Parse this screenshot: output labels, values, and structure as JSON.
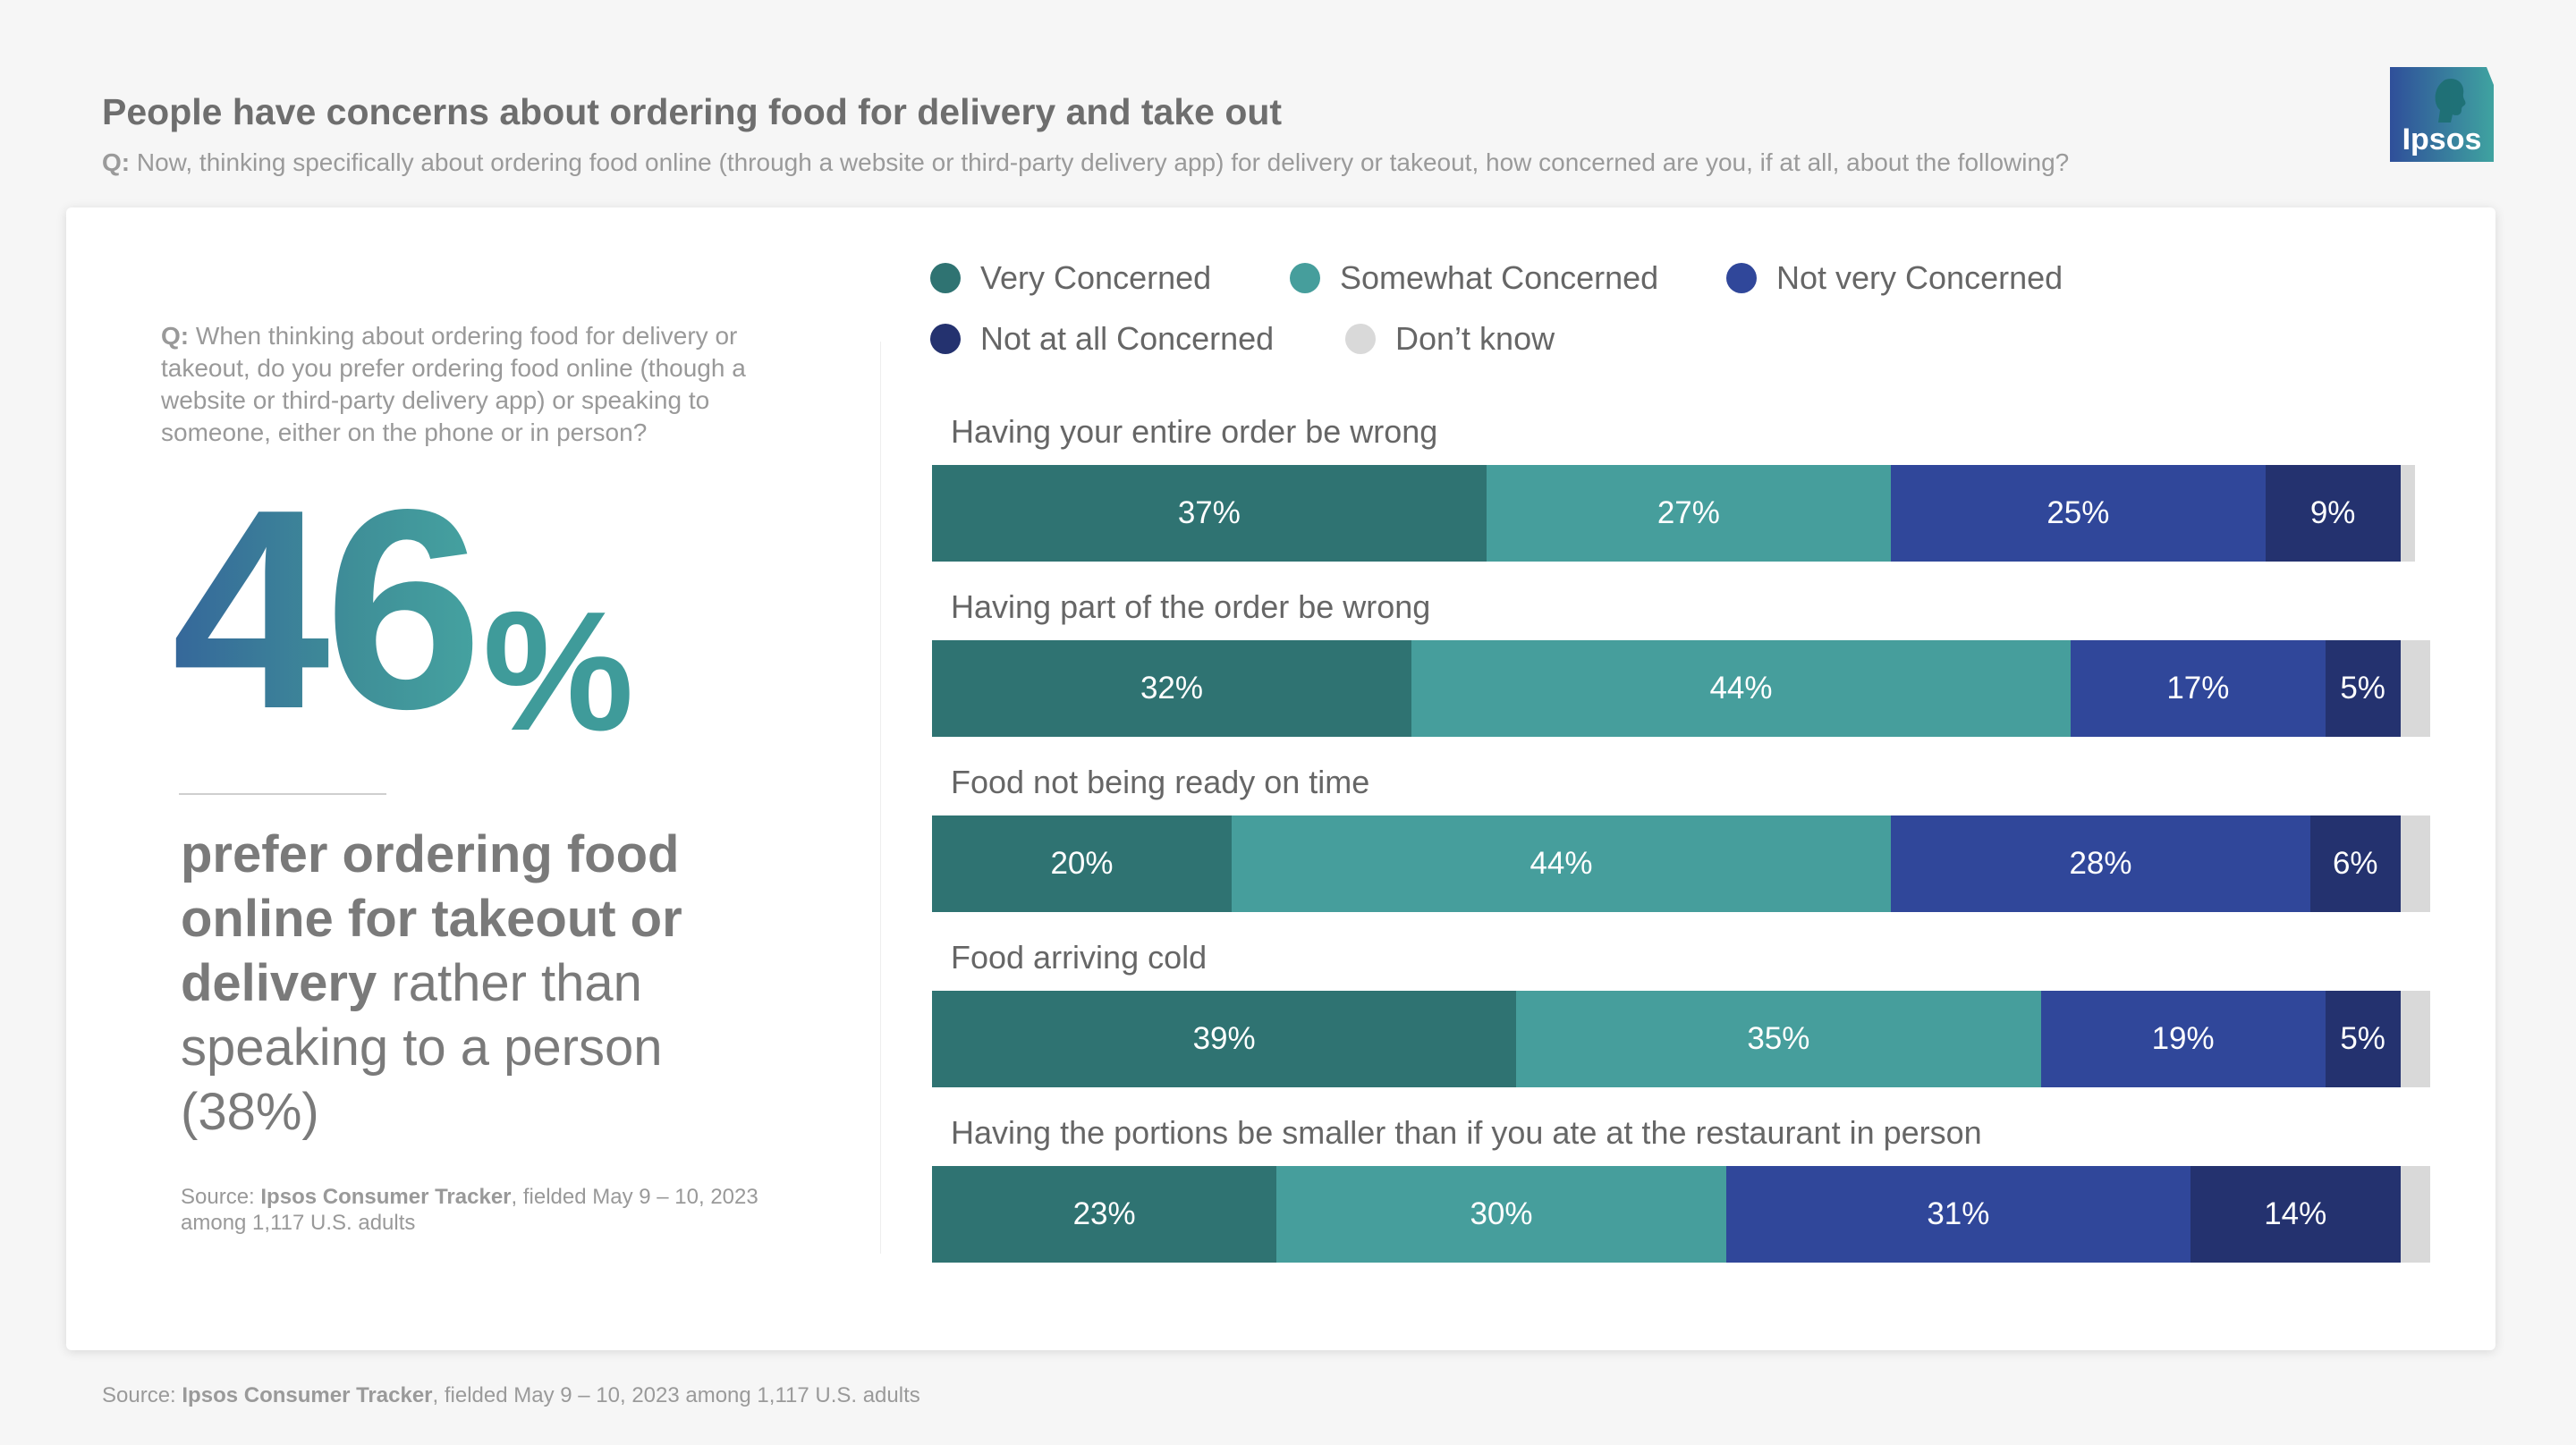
{
  "header": {
    "title": "People have concerns about ordering food for delivery and take out",
    "question_prefix": "Q:",
    "question": " Now, thinking specifically about ordering food online (through a website or third-party delivery app) for delivery or takeout, how concerned are you, if at all, about the following?"
  },
  "logo": {
    "text": "Ipsos"
  },
  "left": {
    "question_prefix": "Q:",
    "question": " When thinking about ordering food for delivery or takeout, do you prefer ordering food online (though a website or third-party delivery app) or speaking to someone, either on the phone or in person?",
    "big_number": "46",
    "big_pct": "%",
    "statement_bold": "prefer ordering food online for takeout or delivery",
    "statement_rest": " rather than speaking to a person (38%)",
    "source_prefix": "Source: ",
    "source_bold": "Ipsos Consumer Tracker",
    "source_rest": ", fielded May 9 – 10, 2023 among 1,117 U.S. adults"
  },
  "footer": {
    "source_prefix": "Source: ",
    "source_bold": "Ipsos Consumer Tracker",
    "source_rest": ", fielded May 9 – 10, 2023 among 1,117 U.S. adults"
  },
  "chart_data": {
    "type": "bar",
    "orientation": "horizontal-stacked-100",
    "legend": [
      {
        "name": "Very Concerned",
        "color": "#2f7372"
      },
      {
        "name": "Somewhat Concerned",
        "color": "#469e9c"
      },
      {
        "name": "Not very Concerned",
        "color": "#30479a"
      },
      {
        "name": "Not at all Concerned",
        "color": "#24326f"
      },
      {
        "name": "Don’t know",
        "color": "#d9d9d9"
      }
    ],
    "categories": [
      "Having your entire order be wrong",
      "Having part of the order be wrong",
      "Food not being ready on time",
      "Food arriving cold",
      "Having the portions be smaller than if you ate at the restaurant in person"
    ],
    "series": [
      {
        "name": "Very Concerned",
        "values": [
          37,
          32,
          20,
          39,
          23
        ]
      },
      {
        "name": "Somewhat Concerned",
        "values": [
          27,
          44,
          44,
          35,
          30
        ]
      },
      {
        "name": "Not very Concerned",
        "values": [
          25,
          17,
          28,
          19,
          31
        ]
      },
      {
        "name": "Not at all Concerned",
        "values": [
          9,
          5,
          6,
          5,
          14
        ]
      },
      {
        "name": "Don’t know",
        "values": [
          1,
          2,
          2,
          2,
          2
        ]
      }
    ],
    "labels": [
      [
        "37%",
        "27%",
        "25%",
        "9%"
      ],
      [
        "32%",
        "44%",
        "17%",
        "5%"
      ],
      [
        "20%",
        "44%",
        "28%",
        "6%"
      ],
      [
        "39%",
        "35%",
        "19%",
        "5%"
      ],
      [
        "23%",
        "30%",
        "31%",
        "14%"
      ]
    ],
    "xlim": [
      0,
      100
    ]
  }
}
